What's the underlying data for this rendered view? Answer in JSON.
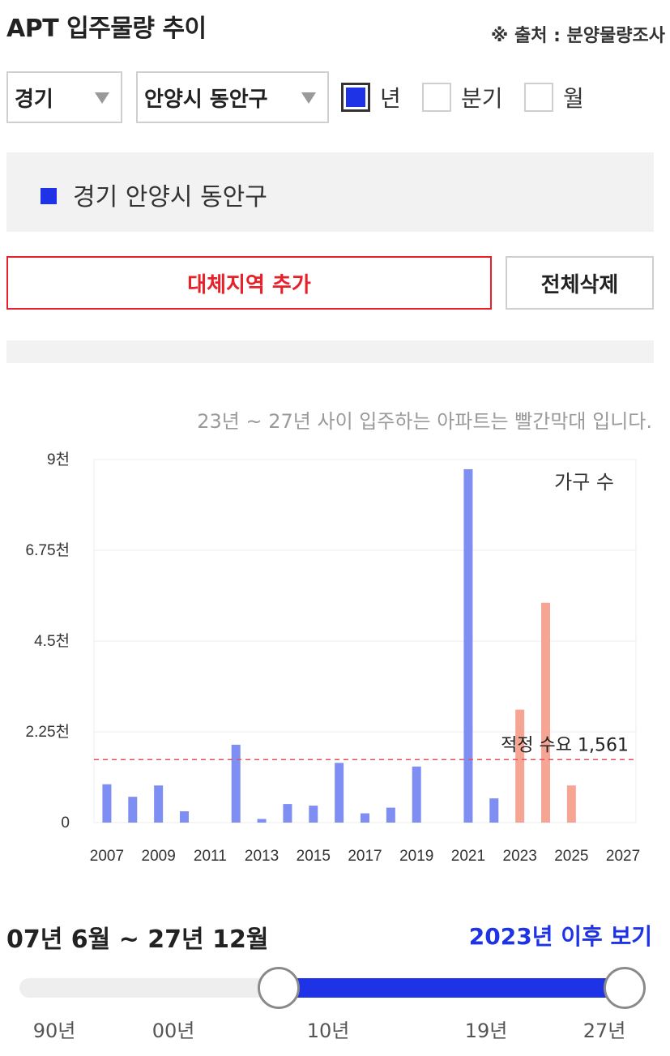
{
  "header": {
    "title": "APT 입주물량 추이",
    "source": "※ 출처 : 분양물량조사"
  },
  "filters": {
    "region": "경기",
    "city": "안양시 동안구",
    "period_options": [
      {
        "label": "년",
        "checked": true
      },
      {
        "label": "분기",
        "checked": false
      },
      {
        "label": "월",
        "checked": false
      }
    ]
  },
  "legend": {
    "label": "경기 안양시 동안구",
    "color": "#1e32e6"
  },
  "buttons": {
    "add_region": "대체지역 추가",
    "delete_all": "전체삭제"
  },
  "chart_note": "23년 ~ 27년 사이 입주하는 아파트는 빨간막대 입니다.",
  "chart_data": {
    "type": "bar",
    "unit_label": "가구 수",
    "y_ticks": [
      "9천",
      "6.75천",
      "4.5천",
      "2.25천",
      "0"
    ],
    "y_tick_values": [
      9000,
      6750,
      4500,
      2250,
      0
    ],
    "ylim": [
      0,
      9000
    ],
    "x_tick_labels": [
      "2007",
      "2009",
      "2011",
      "2013",
      "2015",
      "2017",
      "2019",
      "2021",
      "2023",
      "2025",
      "2027"
    ],
    "categories": [
      2007,
      2008,
      2009,
      2010,
      2011,
      2012,
      2013,
      2014,
      2015,
      2016,
      2017,
      2018,
      2019,
      2020,
      2021,
      2022,
      2023,
      2024,
      2025,
      2026,
      2027
    ],
    "values": [
      950,
      640,
      920,
      280,
      0,
      1930,
      90,
      460,
      420,
      1480,
      230,
      370,
      1390,
      0,
      8760,
      600,
      2800,
      5450,
      920,
      0,
      0
    ],
    "future_from_year": 2023,
    "colors": {
      "past": "#7f8ef3",
      "future": "#f6a595"
    },
    "reference_line": {
      "label": "적정 수요 1,561",
      "value": 1561,
      "color": "#e8505a"
    },
    "grid": true
  },
  "period": {
    "range_text": "07년 6월 ~ 27년 12월",
    "after_link": "2023년 이후 보기"
  },
  "slider": {
    "min": 1990,
    "max": 2027,
    "start": 2007,
    "end": 2027,
    "tick_labels": [
      "90년",
      "00년",
      "10년",
      "19년",
      "27년"
    ],
    "tick_years": [
      1990,
      2000,
      2010,
      2019,
      2027
    ]
  }
}
